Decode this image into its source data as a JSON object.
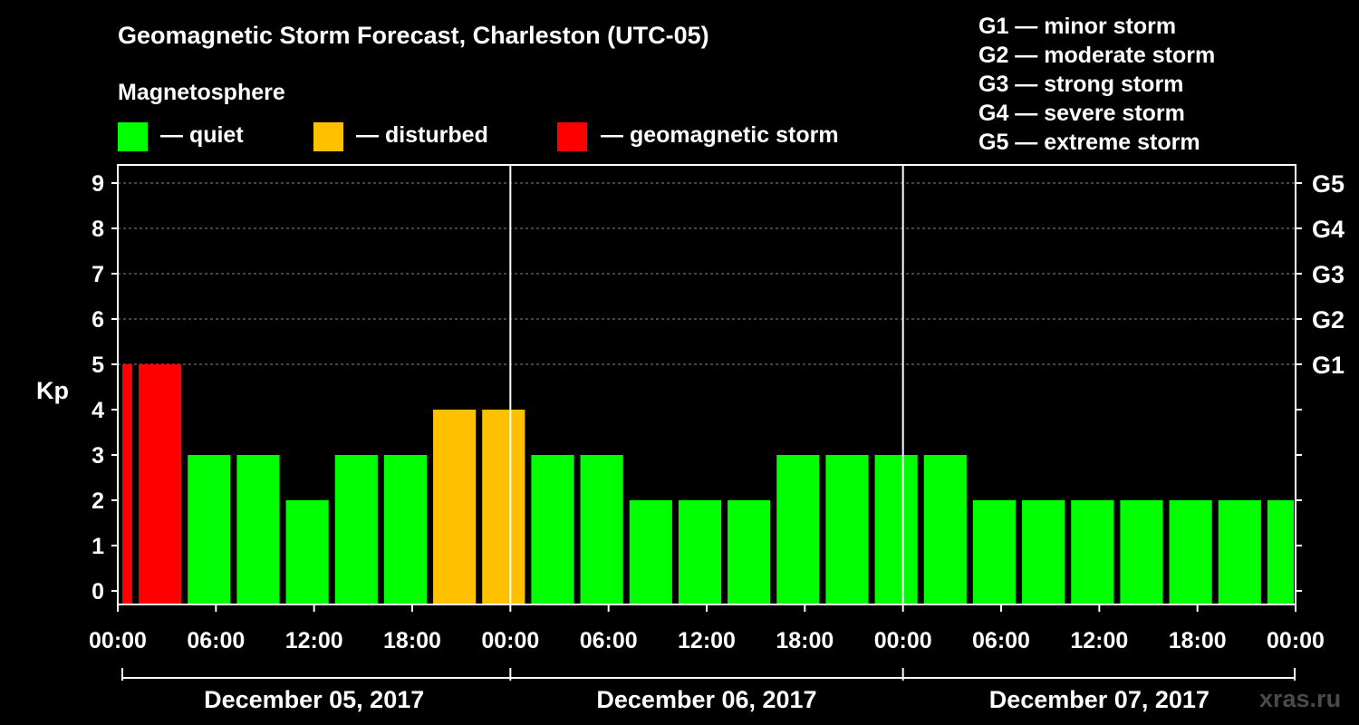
{
  "chart_data": {
    "type": "bar",
    "title": "Geomagnetic Storm Forecast, Charleston (UTC-05)",
    "legend_title": "Magnetosphere",
    "legend": [
      {
        "label": "— quiet",
        "color": "#00ff00"
      },
      {
        "label": "— disturbed",
        "color": "#ffc000"
      },
      {
        "label": "— geomagnetic storm",
        "color": "#ff0000"
      }
    ],
    "storm_scale": [
      "G1 — minor storm",
      "G2 — moderate storm",
      "G3 — strong storm",
      "G4 — severe storm",
      "G5 — extreme storm"
    ],
    "ylabel": "Kp",
    "ylim": [
      0,
      9
    ],
    "yticks": [
      "0",
      "1",
      "2",
      "3",
      "4",
      "5",
      "6",
      "7",
      "8",
      "9"
    ],
    "right_ticks": [
      {
        "kp": 5,
        "label": "G1"
      },
      {
        "kp": 6,
        "label": "G2"
      },
      {
        "kp": 7,
        "label": "G3"
      },
      {
        "kp": 8,
        "label": "G4"
      },
      {
        "kp": 9,
        "label": "G5"
      }
    ],
    "xticks": [
      "00:00",
      "06:00",
      "12:00",
      "18:00",
      "00:00",
      "06:00",
      "12:00",
      "18:00",
      "00:00",
      "06:00",
      "12:00",
      "18:00",
      "00:00"
    ],
    "dates": [
      "December 05, 2017",
      "December 06, 2017",
      "December 07, 2017"
    ],
    "bars": [
      {
        "start": "2017-12-05 00:00",
        "end": "2017-12-05 01:00",
        "kp": 5
      },
      {
        "start": "2017-12-05 01:00",
        "end": "2017-12-05 04:00",
        "kp": 5
      },
      {
        "start": "2017-12-05 04:00",
        "end": "2017-12-05 07:00",
        "kp": 3
      },
      {
        "start": "2017-12-05 07:00",
        "end": "2017-12-05 10:00",
        "kp": 3
      },
      {
        "start": "2017-12-05 10:00",
        "end": "2017-12-05 13:00",
        "kp": 2
      },
      {
        "start": "2017-12-05 13:00",
        "end": "2017-12-05 16:00",
        "kp": 3
      },
      {
        "start": "2017-12-05 16:00",
        "end": "2017-12-05 19:00",
        "kp": 3
      },
      {
        "start": "2017-12-05 19:00",
        "end": "2017-12-05 22:00",
        "kp": 4
      },
      {
        "start": "2017-12-05 22:00",
        "end": "2017-12-06 01:00",
        "kp": 4
      },
      {
        "start": "2017-12-06 01:00",
        "end": "2017-12-06 04:00",
        "kp": 3
      },
      {
        "start": "2017-12-06 04:00",
        "end": "2017-12-06 07:00",
        "kp": 3
      },
      {
        "start": "2017-12-06 07:00",
        "end": "2017-12-06 10:00",
        "kp": 2
      },
      {
        "start": "2017-12-06 10:00",
        "end": "2017-12-06 13:00",
        "kp": 2
      },
      {
        "start": "2017-12-06 13:00",
        "end": "2017-12-06 16:00",
        "kp": 2
      },
      {
        "start": "2017-12-06 16:00",
        "end": "2017-12-06 19:00",
        "kp": 3
      },
      {
        "start": "2017-12-06 19:00",
        "end": "2017-12-06 22:00",
        "kp": 3
      },
      {
        "start": "2017-12-06 22:00",
        "end": "2017-12-07 01:00",
        "kp": 3
      },
      {
        "start": "2017-12-07 01:00",
        "end": "2017-12-07 04:00",
        "kp": 3
      },
      {
        "start": "2017-12-07 04:00",
        "end": "2017-12-07 07:00",
        "kp": 2
      },
      {
        "start": "2017-12-07 07:00",
        "end": "2017-12-07 10:00",
        "kp": 2
      },
      {
        "start": "2017-12-07 10:00",
        "end": "2017-12-07 13:00",
        "kp": 2
      },
      {
        "start": "2017-12-07 13:00",
        "end": "2017-12-07 16:00",
        "kp": 2
      },
      {
        "start": "2017-12-07 16:00",
        "end": "2017-12-07 19:00",
        "kp": 2
      },
      {
        "start": "2017-12-07 19:00",
        "end": "2017-12-07 22:00",
        "kp": 2
      },
      {
        "start": "2017-12-07 22:00",
        "end": "2017-12-08 00:00",
        "kp": 2
      }
    ],
    "colors": {
      "quiet": "#00ff00",
      "disturbed": "#ffc000",
      "storm": "#ff0000"
    },
    "grid": "dashed horizontal at each Kp level from 5 to 9",
    "watermark": "xras.ru"
  }
}
